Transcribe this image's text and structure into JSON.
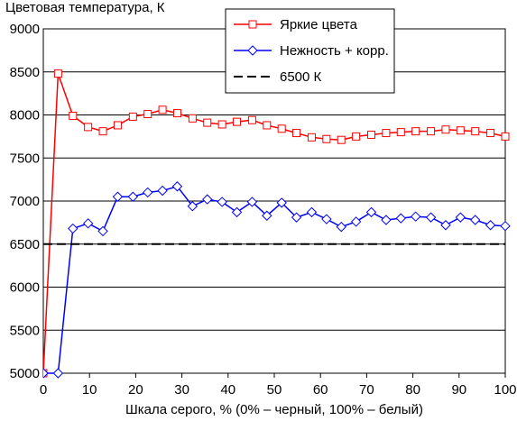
{
  "chart_data": {
    "type": "line",
    "title": "Цветовая температура, К",
    "xlabel": "Шкала серого, % (0% – черный, 100% – белый)",
    "ylabel": "",
    "xlim": [
      0,
      100
    ],
    "ylim": [
      5000,
      9000
    ],
    "x_ticks": [
      0,
      10,
      20,
      30,
      40,
      50,
      60,
      70,
      80,
      90,
      100
    ],
    "y_ticks": [
      5000,
      5500,
      6000,
      6500,
      7000,
      7500,
      8000,
      8500,
      9000
    ],
    "grid": "horizontal",
    "legend_position": "top-center",
    "x": [
      0,
      3.2,
      6.4,
      9.7,
      12.9,
      16.1,
      19.4,
      22.6,
      25.8,
      29.0,
      32.3,
      35.5,
      38.7,
      41.9,
      45.2,
      48.4,
      51.6,
      54.8,
      58.1,
      61.3,
      64.5,
      67.7,
      71.0,
      74.2,
      77.4,
      80.6,
      83.9,
      87.1,
      90.3,
      93.5,
      96.8,
      100
    ],
    "series": [
      {
        "name": "Яркие цвета",
        "color": "#ff0000",
        "marker": "square",
        "values": [
          5000,
          8480,
          7990,
          7860,
          7810,
          7880,
          7980,
          8010,
          8060,
          8020,
          7960,
          7910,
          7890,
          7920,
          7940,
          7880,
          7840,
          7790,
          7740,
          7720,
          7710,
          7750,
          7770,
          7790,
          7800,
          7810,
          7810,
          7830,
          7820,
          7810,
          7790,
          7750
        ]
      },
      {
        "name": "Нежность + корр.",
        "color": "#0000ff",
        "marker": "diamond",
        "values": [
          5000,
          5000,
          6680,
          6740,
          6650,
          7050,
          7050,
          7100,
          7120,
          7170,
          6940,
          7020,
          6990,
          6870,
          6990,
          6830,
          6980,
          6810,
          6870,
          6790,
          6700,
          6760,
          6870,
          6780,
          6800,
          6820,
          6810,
          6720,
          6810,
          6780,
          6720,
          6710
        ]
      },
      {
        "name": "6500 К",
        "color": "#000000",
        "style": "dashed",
        "values": [
          6500,
          6500,
          6500,
          6500,
          6500,
          6500,
          6500,
          6500,
          6500,
          6500,
          6500,
          6500,
          6500,
          6500,
          6500,
          6500,
          6500,
          6500,
          6500,
          6500,
          6500,
          6500,
          6500,
          6500,
          6500,
          6500,
          6500,
          6500,
          6500,
          6500,
          6500,
          6500
        ]
      }
    ]
  }
}
